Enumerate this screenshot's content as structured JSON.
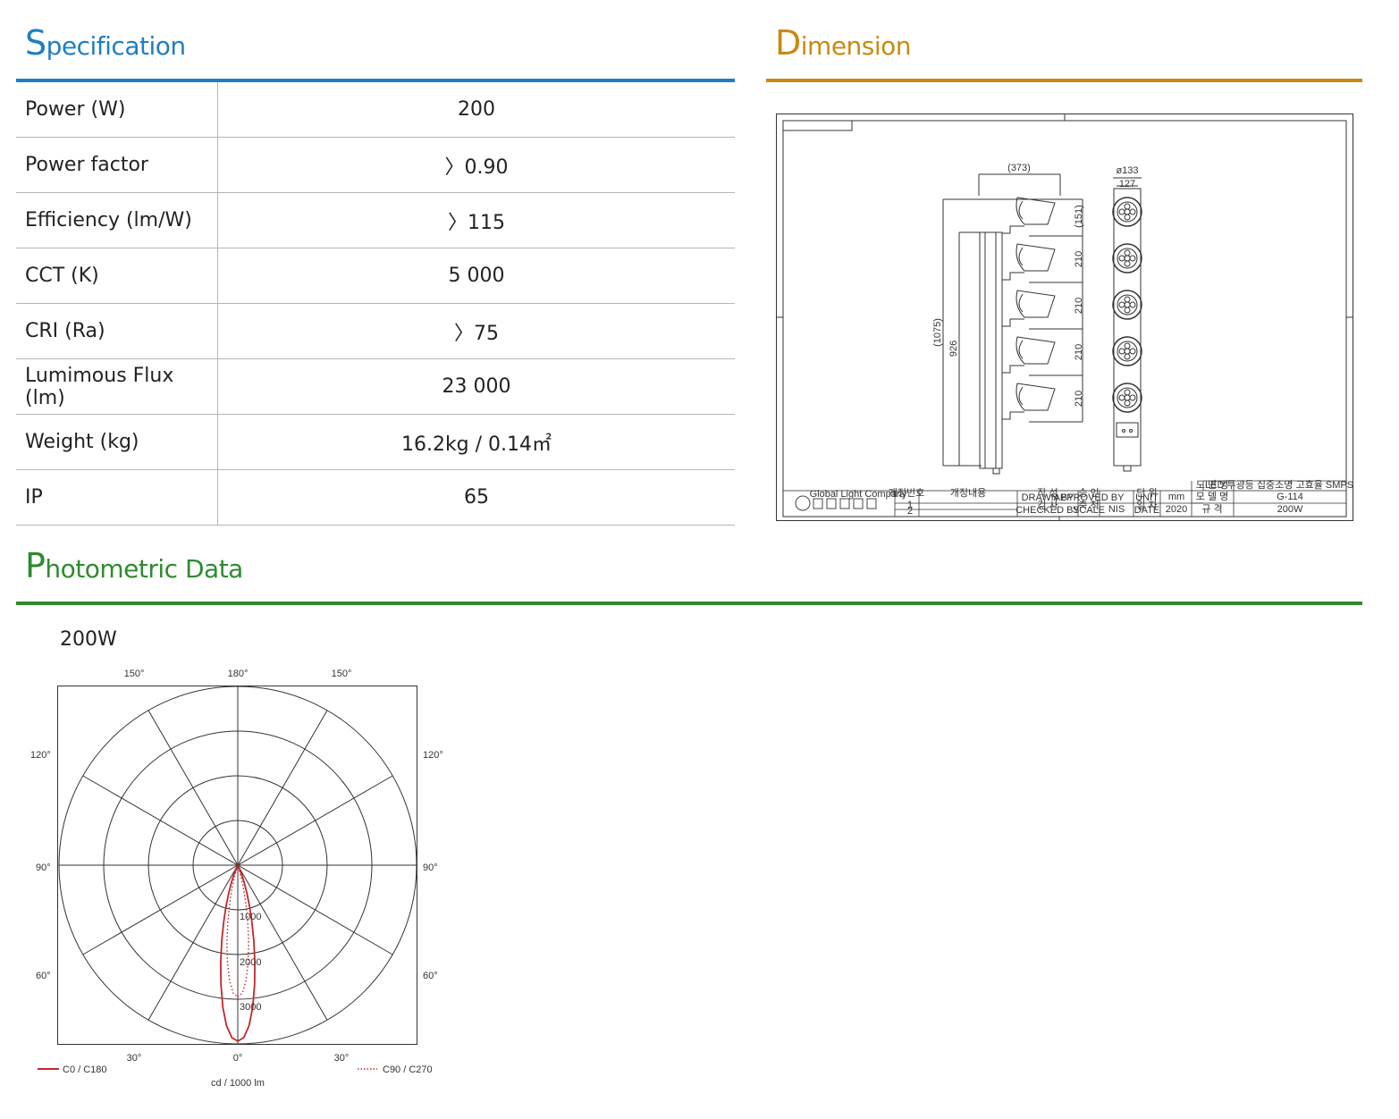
{
  "specification": {
    "title_cap": "S",
    "title_rest": "pecification",
    "rows": [
      {
        "label": "Power (W)",
        "value": "200"
      },
      {
        "label": "Power factor",
        "value": "〉0.90"
      },
      {
        "label": "Efficiency (lm/W)",
        "value": "〉115"
      },
      {
        "label": "CCT (K)",
        "value": "5 000"
      },
      {
        "label": "CRI (Ra)",
        "value": "〉75"
      },
      {
        "label": "Lumimous Flux (lm)",
        "value": "23 000"
      },
      {
        "label": "Weight (kg)",
        "value": "16.2kg / 0.14㎡"
      },
      {
        "label": "IP",
        "value": "65"
      }
    ],
    "color": "#1f7ec2"
  },
  "dimension": {
    "title_cap": "D",
    "title_rest": "imension",
    "color": "#c88a12",
    "drawing": {
      "dim_width": "(373)",
      "dim_top": "(151)",
      "dim_total": "(1075)",
      "dim_body": "926",
      "dim_pitch": [
        "210",
        "210",
        "210",
        "210"
      ],
      "dim_diameter": "ø133",
      "dim_front": "127",
      "title_block": {
        "drawing_name_label": "도 면 명",
        "drawing_name": "LED 투광등 집중조명 고효율 SMPS-접형",
        "model_label": "모 델 명",
        "model": "G-114",
        "spec_label": "규 격",
        "spec": "200W",
        "company": "Global Light Company",
        "unit": "mm",
        "scale": "NIS",
        "year": "2020",
        "rev_header": "개정번호",
        "rev_desc_header": "개정내용",
        "rev_1": "1",
        "rev_2": "2",
        "drawn_by": "작 성",
        "drawn_by_en": "DRAWN BY",
        "checked_by": "검 사",
        "checked_by_en": "CHECKED BY",
        "approved_by": "승 인",
        "approved_by_en": "APPROVED BY",
        "scale_label": "축 척",
        "scale_label_en": "SCALE",
        "unit_label": "단 위",
        "unit_label_en": "UNIT",
        "date_label": "일 자",
        "date_label_en": "DATE"
      }
    }
  },
  "photometric": {
    "title_cap": "P",
    "title_rest": "hotometric Data",
    "color": "#2f8a2f",
    "power_label": "200W",
    "angle_labels": {
      "top_left": "150°",
      "top_center": "180°",
      "top_right": "150°",
      "left_120": "120°",
      "right_120": "120°",
      "left_90": "90°",
      "right_90": "90°",
      "left_60": "60°",
      "right_60": "60°",
      "bottom_left": "30°",
      "bottom_center": "0°",
      "bottom_right": "30°"
    },
    "ring_labels": [
      "1000",
      "2000",
      "3000"
    ],
    "unit": "cd / 1000 lm",
    "legend_c0": "C0 / C180",
    "legend_c90": "C90 / C270"
  },
  "chart_data": {
    "type": "polar",
    "radial_unit": "cd / 1000 lm",
    "rlim": [
      0,
      4000
    ],
    "ring_values": [
      1000,
      2000,
      3000,
      4000
    ],
    "series": [
      {
        "name": "C0 / C180",
        "color": "#c0282b",
        "style": "solid",
        "angles_deg": [
          0,
          2,
          4,
          6,
          8,
          10,
          12,
          14,
          16,
          18,
          20,
          22,
          24,
          26,
          28,
          30
        ],
        "values": [
          3940,
          3860,
          3600,
          3200,
          2700,
          2200,
          1720,
          1300,
          950,
          660,
          430,
          250,
          120,
          40,
          10,
          0
        ]
      },
      {
        "name": "C90 / C270",
        "color": "#c0282b",
        "style": "dotted",
        "angles_deg": [
          0,
          2,
          4,
          6,
          8,
          10,
          12,
          14,
          16,
          18,
          20
        ],
        "values": [
          2950,
          2870,
          2600,
          2200,
          1750,
          1280,
          860,
          520,
          250,
          80,
          0
        ]
      }
    ]
  }
}
